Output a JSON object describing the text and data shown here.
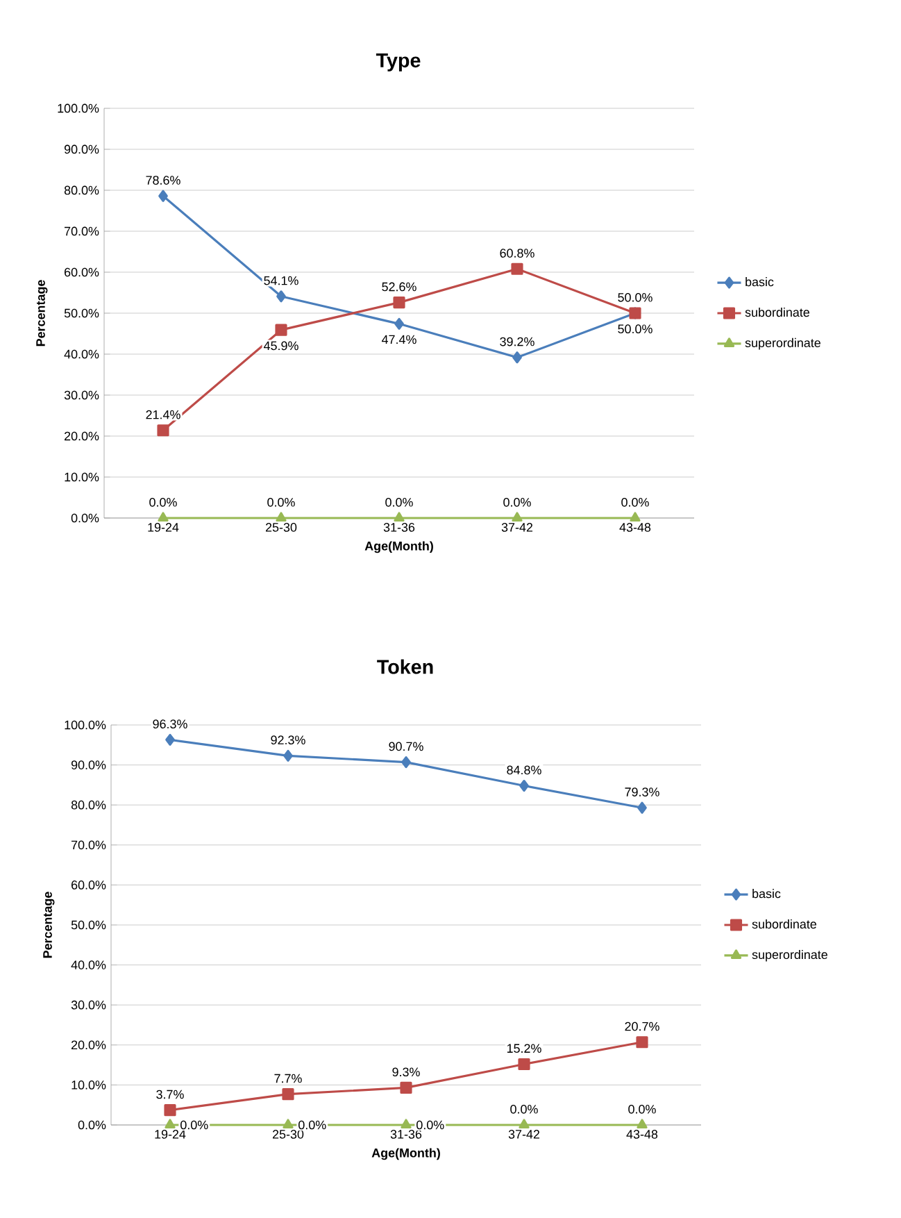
{
  "chart_data": [
    {
      "type": "line",
      "title": "Type",
      "xlabel": "Age(Month)",
      "ylabel": "Percentage",
      "categories": [
        "19-24",
        "25-30",
        "31-36",
        "37-42",
        "43-48"
      ],
      "series": [
        {
          "name": "basic",
          "color": "#4a7ebb",
          "marker": "diamond",
          "values": [
            78.6,
            54.1,
            47.4,
            39.2,
            50.0
          ],
          "value_labels": [
            "78.6%",
            "54.1%",
            "47.4%",
            "39.2%",
            "50.0%"
          ]
        },
        {
          "name": "subordinate",
          "color": "#be4b48",
          "marker": "square",
          "values": [
            21.4,
            45.9,
            52.6,
            60.8,
            50.0
          ],
          "value_labels": [
            "21.4%",
            "45.9%",
            "52.6%",
            "60.8%",
            "50.0%"
          ]
        },
        {
          "name": "superordinate",
          "color": "#98b954",
          "marker": "triangle",
          "values": [
            0,
            0,
            0,
            0,
            0
          ],
          "value_labels": [
            "0.0%",
            "0.0%",
            "0.0%",
            "0.0%",
            "0.0%"
          ]
        }
      ],
      "ylim": [
        0,
        100
      ],
      "yticks": [
        {
          "value": 0,
          "label": "0.0%"
        },
        {
          "value": 10,
          "label": "10.0%"
        },
        {
          "value": 20,
          "label": "20.0%"
        },
        {
          "value": 30,
          "label": "30.0%"
        },
        {
          "value": 40,
          "label": "40.0%"
        },
        {
          "value": 50,
          "label": "50.0%"
        },
        {
          "value": 60,
          "label": "60.0%"
        },
        {
          "value": 70,
          "label": "70.0%"
        },
        {
          "value": 80,
          "label": "80.0%"
        },
        {
          "value": 90,
          "label": "90.0%"
        },
        {
          "value": 100,
          "label": "100.0%"
        }
      ],
      "grid": "y",
      "legend": "right"
    },
    {
      "type": "line",
      "title": "Token",
      "xlabel": "Age(Month)",
      "ylabel": "Percentage",
      "categories": [
        "19-24",
        "25-30",
        "31-36",
        "37-42",
        "43-48"
      ],
      "series": [
        {
          "name": "basic",
          "color": "#4a7ebb",
          "marker": "diamond",
          "values": [
            96.3,
            92.3,
            90.7,
            84.8,
            79.3
          ],
          "value_labels": [
            "96.3%",
            "92.3%",
            "90.7%",
            "84.8%",
            "79.3%"
          ]
        },
        {
          "name": "subordinate",
          "color": "#be4b48",
          "marker": "square",
          "values": [
            3.7,
            7.7,
            9.3,
            15.2,
            20.7
          ],
          "value_labels": [
            "3.7%",
            "7.7%",
            "9.3%",
            "15.2%",
            "20.7%"
          ]
        },
        {
          "name": "superordinate",
          "color": "#98b954",
          "marker": "triangle",
          "values": [
            0,
            0,
            0,
            0,
            0
          ],
          "value_labels": [
            "0.0%",
            "0.0%",
            "0.0%",
            "0.0%",
            "0.0%"
          ]
        }
      ],
      "ylim": [
        0,
        100
      ],
      "yticks": [
        {
          "value": 0,
          "label": "0.0%"
        },
        {
          "value": 10,
          "label": "10.0%"
        },
        {
          "value": 20,
          "label": "20.0%"
        },
        {
          "value": 30,
          "label": "30.0%"
        },
        {
          "value": 40,
          "label": "40.0%"
        },
        {
          "value": 50,
          "label": "50.0%"
        },
        {
          "value": 60,
          "label": "60.0%"
        },
        {
          "value": 70,
          "label": "70.0%"
        },
        {
          "value": 80,
          "label": "80.0%"
        },
        {
          "value": 90,
          "label": "90.0%"
        },
        {
          "value": 100,
          "label": "100.0%"
        }
      ],
      "grid": "y",
      "legend": "right"
    }
  ]
}
